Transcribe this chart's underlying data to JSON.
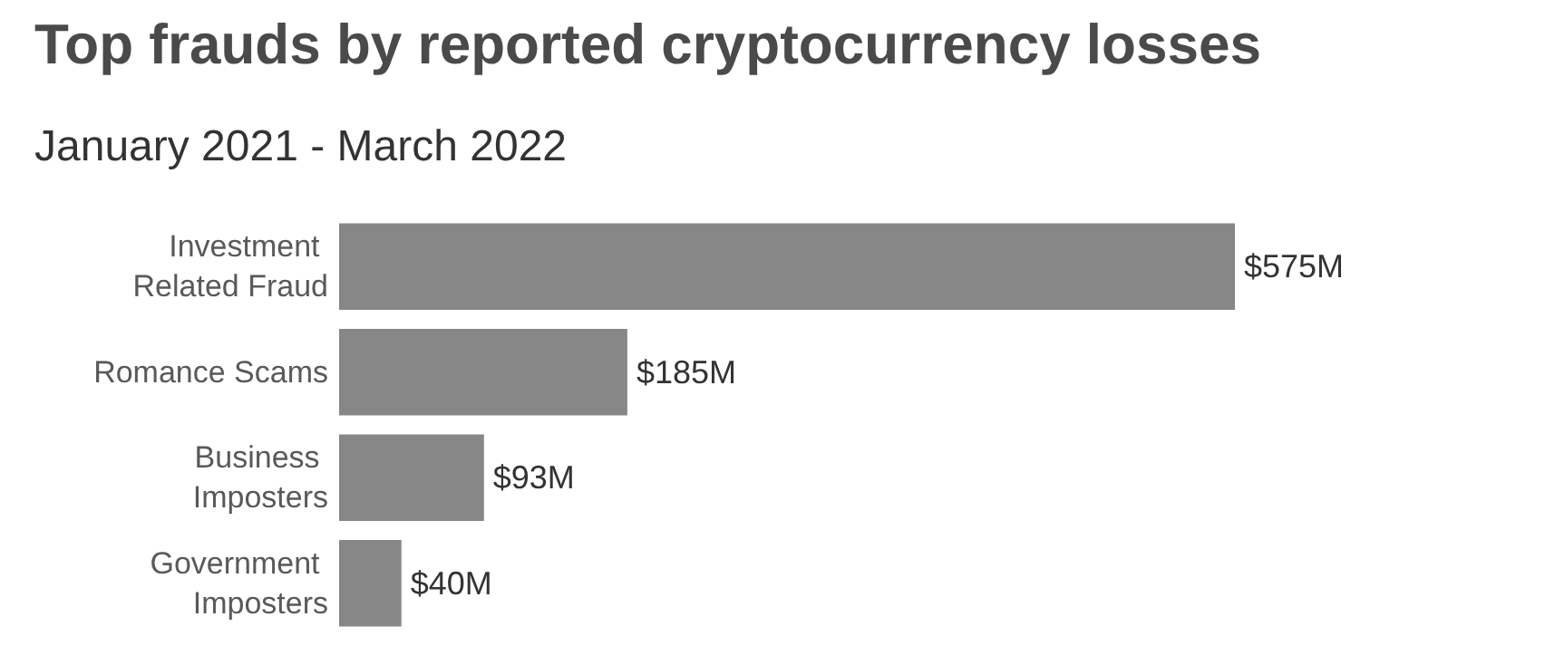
{
  "chart_data": {
    "type": "bar",
    "orientation": "horizontal",
    "title": "Top frauds by reported cryptocurrency losses",
    "subtitle": "January 2021 - March 2022",
    "categories": [
      "Investment Related Fraud",
      "Romance Scams",
      "Business Imposters",
      "Government Imposters"
    ],
    "values": [
      575,
      185,
      93,
      40
    ],
    "value_labels": [
      "$575M",
      "$185M",
      "$93M",
      "$40M"
    ],
    "color": "#878787",
    "tick_labels": "y"
  }
}
